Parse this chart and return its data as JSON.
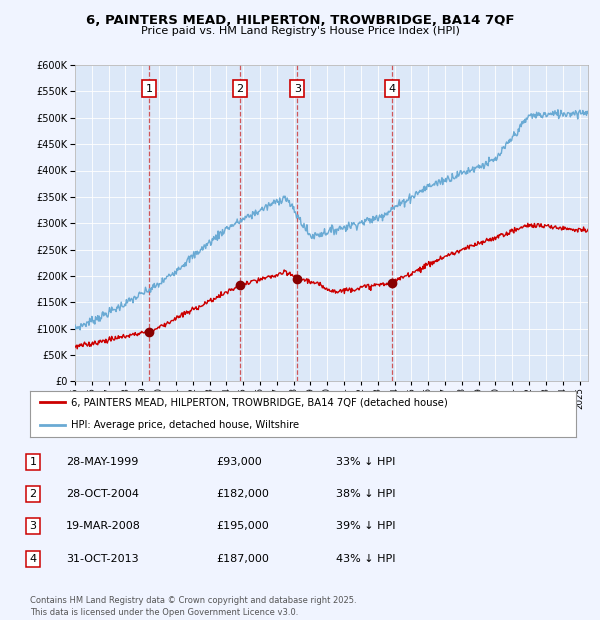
{
  "title_line1": "6, PAINTERS MEAD, HILPERTON, TROWBRIDGE, BA14 7QF",
  "title_line2": "Price paid vs. HM Land Registry's House Price Index (HPI)",
  "background_color": "#f0f4ff",
  "plot_bg_color": "#dce8f8",
  "hpi_color": "#6aaad4",
  "price_color": "#cc0000",
  "ylim": [
    0,
    600000
  ],
  "yticks": [
    0,
    50000,
    100000,
    150000,
    200000,
    250000,
    300000,
    350000,
    400000,
    450000,
    500000,
    550000,
    600000
  ],
  "sale_dates": [
    1999.41,
    2004.82,
    2008.21,
    2013.83
  ],
  "sale_prices": [
    93000,
    182000,
    195000,
    187000
  ],
  "sale_labels": [
    "1",
    "2",
    "3",
    "4"
  ],
  "legend_price_label": "6, PAINTERS MEAD, HILPERTON, TROWBRIDGE, BA14 7QF (detached house)",
  "legend_hpi_label": "HPI: Average price, detached house, Wiltshire",
  "table_entries": [
    [
      "1",
      "28-MAY-1999",
      "£93,000",
      "33% ↓ HPI"
    ],
    [
      "2",
      "28-OCT-2004",
      "£182,000",
      "38% ↓ HPI"
    ],
    [
      "3",
      "19-MAR-2008",
      "£195,000",
      "39% ↓ HPI"
    ],
    [
      "4",
      "31-OCT-2013",
      "£187,000",
      "43% ↓ HPI"
    ]
  ],
  "footnote": "Contains HM Land Registry data © Crown copyright and database right 2025.\nThis data is licensed under the Open Government Licence v3.0.",
  "xmin": 1995,
  "xmax": 2025.5
}
